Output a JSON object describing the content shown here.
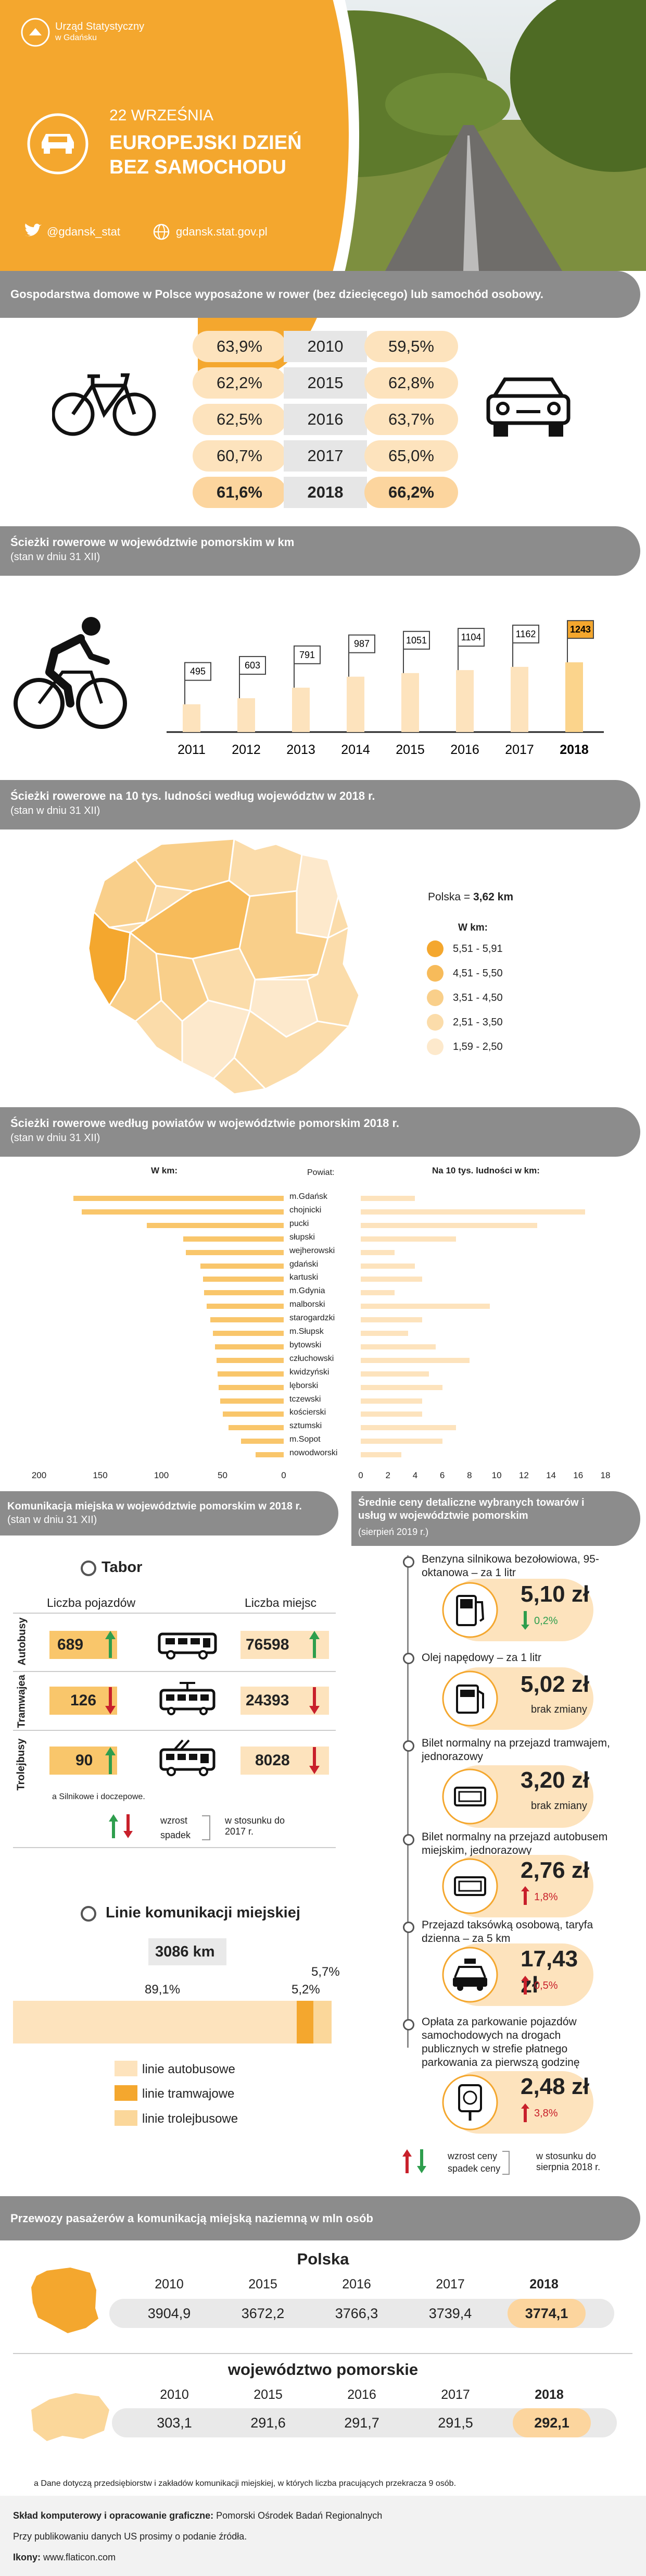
{
  "header": {
    "org_line1": "Urząd Statystyczny",
    "org_line2": "w Gdańsku",
    "date": "22 WRZEŚNIA",
    "title_line1": "EUROPEJSKI DZIEŃ",
    "title_line2": "BEZ SAMOCHODU",
    "twitter": "@gdansk_stat",
    "website": "gdansk.stat.gov.pl"
  },
  "households": {
    "title": "Gospodarstwa domowe w Polsce wyposażone w rower (bez dziecięcego) lub samochód osobowy.",
    "rows": [
      {
        "bike": "63,9%",
        "year": "2010",
        "car": "59,5%"
      },
      {
        "bike": "62,2%",
        "year": "2015",
        "car": "62,8%"
      },
      {
        "bike": "62,5%",
        "year": "2016",
        "car": "63,7%"
      },
      {
        "bike": "60,7%",
        "year": "2017",
        "car": "65,0%"
      },
      {
        "bike": "61,6%",
        "year": "2018",
        "car": "66,2%"
      }
    ]
  },
  "paths": {
    "title": "Ścieżki rowerowe w województwie pomorskim w km",
    "subtitle": "(stan w dniu 31 XII)",
    "chart_data": {
      "type": "bar",
      "categories": [
        "2011",
        "2012",
        "2013",
        "2014",
        "2015",
        "2016",
        "2017",
        "2018"
      ],
      "values": [
        495,
        603,
        791,
        987,
        1051,
        1104,
        1162,
        1243
      ]
    }
  },
  "map": {
    "title": "Ścieżki rowerowe na 10 tys. ludności według województw w 2018 r.",
    "subtitle": "(stan w dniu 31 XII)",
    "poland_label": "Polska = ",
    "poland_value": "3,62 km",
    "legend_title": "W km:",
    "legend": [
      {
        "label": "5,51 - 5,91",
        "color": "#f4a72e"
      },
      {
        "label": "4,51 - 5,50",
        "color": "#f7bb5a"
      },
      {
        "label": "3,51 - 4,50",
        "color": "#f9cf8a"
      },
      {
        "label": "2,51 - 3,50",
        "color": "#fbdcaa"
      },
      {
        "label": "1,59 - 2,50",
        "color": "#fde9cc"
      }
    ]
  },
  "powiats": {
    "title": "Ścieżki rowerowe według powiatów w województwie pomorskim 2018 r.",
    "subtitle": "(stan w dniu 31 XII)",
    "left_header": "W km:",
    "mid_header": "Powiat:",
    "right_header": "Na 10 tys. ludności w km:",
    "left_ticks": [
      "200",
      "150",
      "100",
      "50",
      "0"
    ],
    "right_ticks": [
      "0",
      "2",
      "4",
      "6",
      "8",
      "10",
      "12",
      "14",
      "16",
      "18"
    ],
    "chart_data": {
      "type": "bar",
      "categories": [
        "m.Gdańsk",
        "chojnicki",
        "pucki",
        "słupski",
        "wejherowski",
        "gdański",
        "kartuski",
        "m.Gdynia",
        "malborski",
        "starogardzki",
        "m.Słupsk",
        "bytowski",
        "człuchowski",
        "kwidzyński",
        "lęborski",
        "tczewski",
        "kościerski",
        "sztumski",
        "m.Sopot",
        "nowodworski"
      ],
      "series": [
        {
          "name": "W km:",
          "values": [
            172,
            165,
            112,
            82,
            80,
            68,
            66,
            65,
            63,
            60,
            58,
            56,
            55,
            54,
            53,
            52,
            50,
            45,
            35,
            23
          ]
        },
        {
          "name": "Na 10 tys. ludności w km:",
          "values": [
            4.0,
            16.5,
            13.0,
            7.0,
            2.5,
            4.0,
            4.5,
            2.5,
            9.5,
            4.5,
            3.5,
            5.5,
            8.0,
            5.0,
            6.0,
            4.5,
            4.5,
            7.0,
            6.0,
            3.0
          ]
        }
      ]
    }
  },
  "transport": {
    "title_bold": "Komunikacja miejska w województwie pomorskim w 2018 r.",
    "title_normal": "(stan w dniu 31 XII)",
    "tabor_title": "Tabor",
    "col_vehicles": "Liczba pojazdów",
    "col_seats": "Liczba miejsc",
    "rows": [
      {
        "label": "Autobusy",
        "vehicles": "689",
        "v_dir": "up",
        "seats": "76598",
        "s_dir": "up"
      },
      {
        "label": "Tramwajea",
        "vehicles": "126",
        "v_dir": "down",
        "seats": "24393",
        "s_dir": "down"
      },
      {
        "label": "Trolejbusy",
        "vehicles": "90",
        "v_dir": "up",
        "seats": "8028",
        "s_dir": "down"
      }
    ],
    "footnote": "a Silnikowe i doczepowe.",
    "legend_up": "wzrost",
    "legend_down": "spadek",
    "legend_ref": "w stosunku do 2017 r.",
    "lines_title": "Linie komunikacji miejskiej",
    "lines_total": "3086 km",
    "lines_chart_data": {
      "type": "bar",
      "categories": [
        "linie autobusowe",
        "linie tramwajowe",
        "linie trolejbusowe"
      ],
      "values": [
        89.1,
        5.2,
        5.7
      ],
      "labels": [
        "89,1%",
        "5,2%",
        "5,7%"
      ]
    },
    "lines_legend": [
      {
        "label": "linie autobusowe",
        "color": "#fde3bd"
      },
      {
        "label": "linie tramwajowe",
        "color": "#f4a72e"
      },
      {
        "label": "linie trolejbusowe",
        "color": "#fbd79a"
      }
    ]
  },
  "prices": {
    "title": "Średnie ceny detaliczne wybranych towarów i usług w województwie pomorskim",
    "subtitle": "(sierpień 2019 r.)",
    "items": [
      {
        "desc": "Benzyna silnikowa bezołowiowa, 95-oktanowa – za 1 litr",
        "price": "5,10 zł",
        "note": "0,2%",
        "dir": "down"
      },
      {
        "desc": "Olej napędowy – za 1 litr",
        "price": "5,02 zł",
        "note": "brak zmiany",
        "dir": "none"
      },
      {
        "desc": "Bilet normalny na przejazd tramwajem, jednorazowy",
        "price": "3,20 zł",
        "note": "brak zmiany",
        "dir": "none"
      },
      {
        "desc": "Bilet normalny na przejazd autobusem miejskim, jednorazowy",
        "price": "2,76 zł",
        "note": "1,8%",
        "dir": "up"
      },
      {
        "desc": "Przejazd taksówką osobową, taryfa dzienna – za 5 km",
        "price": "17,43 zł",
        "note": "0,5%",
        "dir": "up"
      },
      {
        "desc": "Opłata za parkowanie pojazdów samochodowych na drogach publicznych w strefie płatnego parkowania za pierwszą godzinę",
        "price": "2,48 zł",
        "note": "3,8%",
        "dir": "up"
      }
    ],
    "legend_up": "wzrost ceny",
    "legend_down": "spadek ceny",
    "legend_ref": "w stosunku do sierpnia 2018 r."
  },
  "passengers": {
    "title": "Przewozy pasażerów a komunikacją miejską naziemną w mln osób",
    "poland_title": "Polska",
    "region_title": "województwo pomorskie",
    "years": [
      "2010",
      "2015",
      "2016",
      "2017",
      "2018"
    ],
    "poland_values": [
      "3904,9",
      "3672,2",
      "3766,3",
      "3739,4",
      "3774,1"
    ],
    "region_values": [
      "303,1",
      "291,6",
      "291,7",
      "291,5",
      "292,1"
    ],
    "footnote": "a Dane dotyczą przedsiębiorstw i zakładów komunikacji miejskiej, w których liczba pracujących przekracza 9 osób."
  },
  "footer": {
    "line1_bold": "Skład komputerowy i opracowanie graficzne:",
    "line1_normal": " Pomorski Ośrodek Badań Regionalnych",
    "line2": "Przy publikowaniu danych US prosimy o podanie źródła.",
    "line3_bold": "Ikony:",
    "line3_normal": " www.flaticon.com"
  }
}
